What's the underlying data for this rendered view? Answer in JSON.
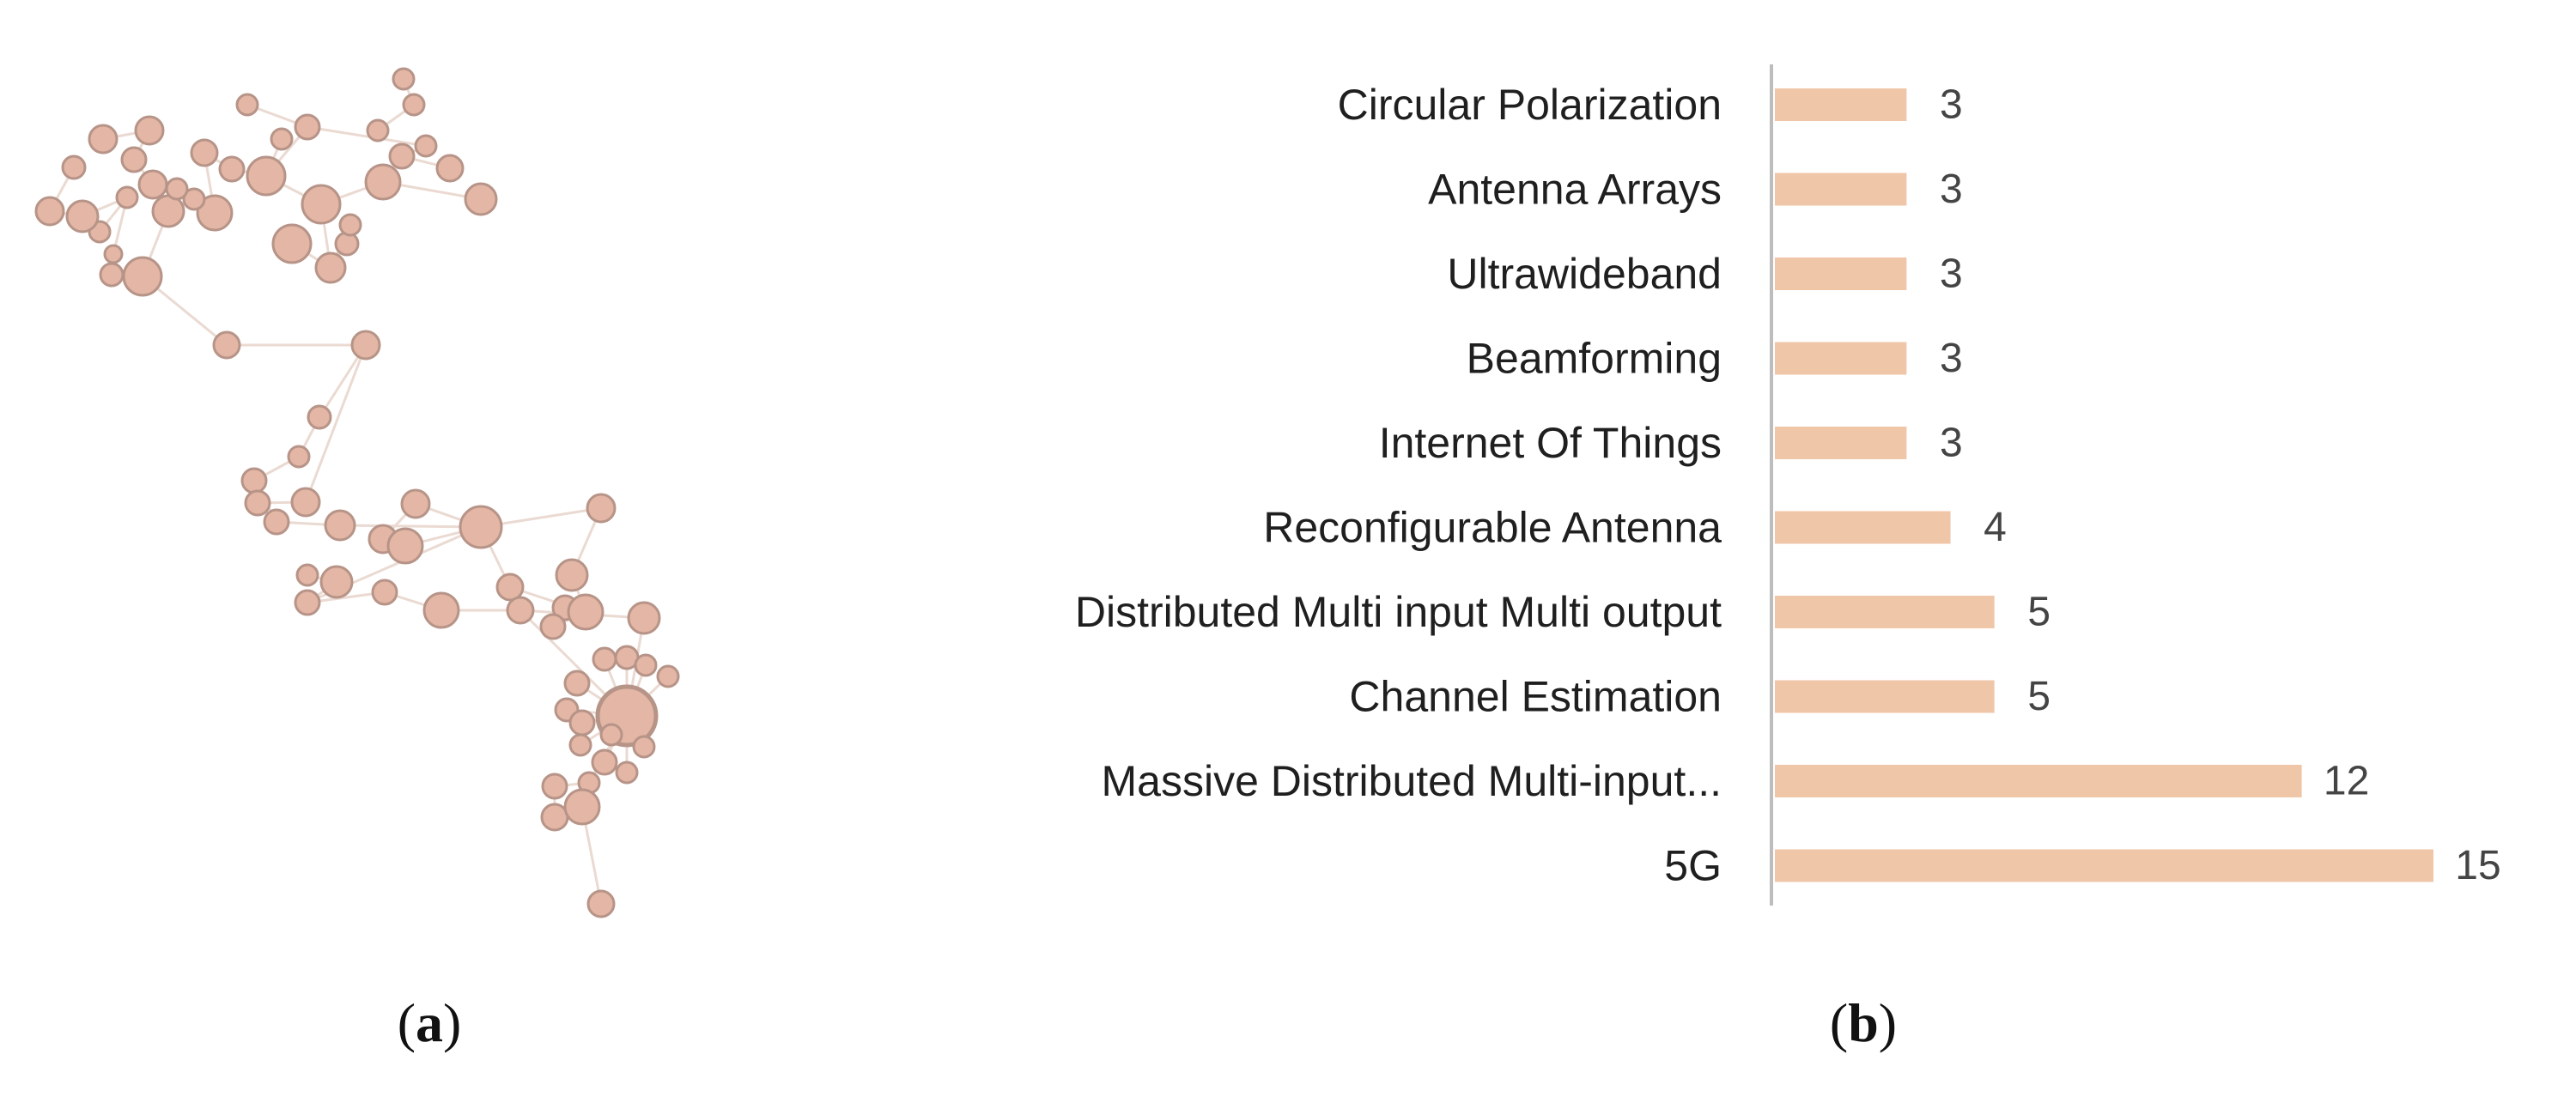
{
  "colors": {
    "bar": "#f0c6a8",
    "node_fill": "#e3b6a5",
    "node_stroke": "#b79488",
    "edge": "#eadad2",
    "axis": "#bdbdbd",
    "text": "#1f1f1f",
    "value_text": "#444444"
  },
  "panels": {
    "a": {
      "caption_letter": "a"
    },
    "b": {
      "caption_letter": "b"
    }
  },
  "chart_data": [
    {
      "type": "network",
      "panel": "a",
      "description_visible": false
    },
    {
      "type": "bar",
      "orientation": "horizontal",
      "panel": "b",
      "categories": [
        "Circular Polarization",
        "Antenna Arrays",
        "Ultrawideband",
        "Beamforming",
        "Internet Of Things",
        "Reconfigurable Antenna",
        "Distributed Multi input Multi output",
        "Channel Estimation",
        "Massive Distributed Multi-input...",
        "5G"
      ],
      "values": [
        3,
        3,
        3,
        3,
        3,
        4,
        5,
        5,
        12,
        15
      ],
      "xlim": [
        0,
        15
      ],
      "grid": false,
      "title": "",
      "xlabel": "",
      "ylabel": ""
    }
  ]
}
